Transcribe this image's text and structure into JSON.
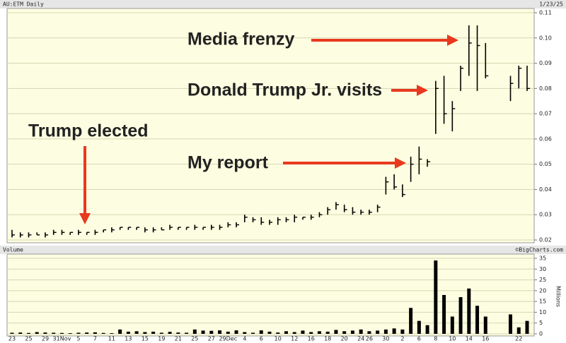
{
  "chart_data": [
    {
      "type": "ohlc",
      "title": "AU:ETM Daily",
      "date": "1/23/25",
      "color": "#000000",
      "background": "#fdfde1",
      "grid": true,
      "ylim": [
        0.02,
        0.11
      ],
      "yticks": [
        0.02,
        0.03,
        0.04,
        0.05,
        0.06,
        0.07,
        0.08,
        0.09,
        {
          "value": 0.1,
          "label": "0.10"
        },
        0.11
      ],
      "high": [
        0.024,
        0.023,
        0.023,
        0.023,
        0.023,
        0.024,
        0.024,
        0.023,
        0.024,
        0.023,
        0.024,
        0.024,
        0.025,
        0.025,
        0.025,
        0.025,
        0.025,
        0.025,
        0.025,
        0.026,
        0.025,
        0.025,
        0.026,
        0.025,
        0.026,
        0.026,
        0.027,
        0.027,
        0.03,
        0.029,
        0.029,
        0.028,
        0.029,
        0.029,
        0.03,
        0.029,
        0.03,
        0.031,
        0.033,
        0.035,
        0.034,
        0.033,
        0.032,
        0.032,
        0.034,
        0.045,
        0.046,
        0.042,
        0.053,
        0.057,
        0.052,
        0.083,
        0.085,
        0.075,
        0.089,
        0.105,
        0.105,
        0.098,
        null,
        null,
        0.085,
        0.089,
        0.089
      ],
      "low": [
        0.021,
        0.021,
        0.021,
        0.022,
        0.021,
        0.022,
        0.022,
        0.022,
        0.022,
        0.022,
        0.022,
        0.023,
        0.023,
        0.024,
        0.024,
        0.024,
        0.023,
        0.023,
        0.024,
        0.024,
        0.024,
        0.024,
        0.024,
        0.024,
        0.024,
        0.024,
        0.025,
        0.025,
        0.027,
        0.027,
        0.026,
        0.026,
        0.026,
        0.027,
        0.027,
        0.028,
        0.028,
        0.029,
        0.03,
        0.032,
        0.031,
        0.03,
        0.03,
        0.03,
        0.031,
        0.038,
        0.04,
        0.037,
        0.043,
        0.046,
        0.049,
        0.062,
        0.066,
        0.063,
        0.079,
        0.085,
        0.079,
        0.084,
        null,
        null,
        0.075,
        0.08,
        0.079
      ],
      "close": [
        0.022,
        0.022,
        0.022,
        0.022,
        0.022,
        0.023,
        0.023,
        0.023,
        0.023,
        0.023,
        0.023,
        0.024,
        0.024,
        0.025,
        0.025,
        0.025,
        0.024,
        0.024,
        0.024,
        0.025,
        0.025,
        0.025,
        0.025,
        0.025,
        0.025,
        0.025,
        0.026,
        0.026,
        0.029,
        0.028,
        0.027,
        0.027,
        0.028,
        0.028,
        0.029,
        0.029,
        0.029,
        0.03,
        0.032,
        0.034,
        0.032,
        0.031,
        0.031,
        0.031,
        0.033,
        0.043,
        0.041,
        0.038,
        0.05,
        0.052,
        0.051,
        0.08,
        0.07,
        0.072,
        0.088,
        0.098,
        0.097,
        0.085,
        null,
        null,
        0.082,
        0.088,
        0.08
      ],
      "annotations": [
        "Media frenzy",
        "Donald Trump Jr. visits",
        "Trump elected",
        "My report"
      ],
      "annotation_color": "#e8391e"
    },
    {
      "type": "bar",
      "title": "Volume",
      "source": "©BigCharts.com",
      "y_label": "Millions",
      "color": "#000000",
      "background": "#fdfde1",
      "grid": true,
      "categories": [
        "23",
        null,
        "25",
        null,
        "29",
        null,
        "31Nov",
        null,
        "5",
        null,
        "7",
        null,
        "11",
        null,
        "13",
        null,
        "15",
        null,
        "19",
        null,
        "21",
        null,
        "25",
        null,
        "27",
        null,
        "29Dec",
        null,
        "4",
        null,
        "6",
        null,
        "10",
        null,
        "12",
        null,
        "16",
        null,
        "18",
        null,
        "20",
        null,
        "24",
        "26",
        null,
        "30",
        null,
        "2",
        null,
        "6",
        null,
        "8",
        null,
        "10",
        null,
        "14",
        null,
        "16",
        null,
        null,
        null,
        "22",
        null
      ],
      "values": [
        0.5,
        0.6,
        0.4,
        0.8,
        0.6,
        0.5,
        0.4,
        0.3,
        0.5,
        0.6,
        0.7,
        0.4,
        0.3,
        2,
        1,
        1.2,
        0.8,
        1,
        0.5,
        0.9,
        0.6,
        0.5,
        2,
        1.5,
        1.4,
        1.6,
        1,
        1.6,
        0.8,
        0.5,
        1.6,
        1,
        0.6,
        1.2,
        0.8,
        1.5,
        0.8,
        1.2,
        1,
        1.8,
        1.2,
        1.5,
        2,
        1.2,
        1.5,
        2,
        2.5,
        2,
        12,
        6,
        4,
        34,
        18,
        8,
        17,
        21,
        13,
        8,
        null,
        null,
        9,
        3,
        6
      ],
      "ylim": [
        0,
        35
      ],
      "yticks": [
        0,
        5,
        10,
        15,
        20,
        25,
        30,
        35
      ]
    }
  ]
}
